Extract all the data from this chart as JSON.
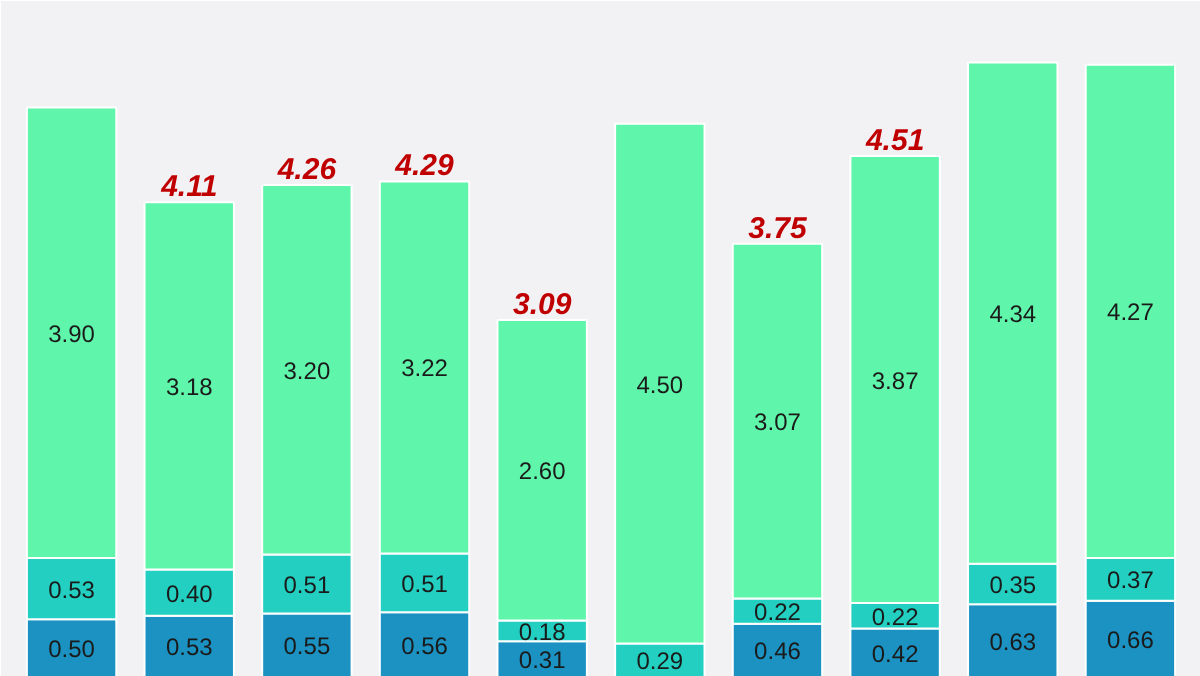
{
  "chart_data": {
    "type": "bar",
    "stacked": true,
    "categories": [
      null,
      null,
      null,
      null,
      null,
      null,
      null,
      null,
      null,
      null
    ],
    "series": [
      {
        "color": "#1b92c2",
        "values": [
          0.5,
          0.53,
          0.55,
          0.56,
          0.31,
          null,
          0.46,
          0.42,
          0.63,
          0.66
        ],
        "value_labels": [
          "0.50",
          "0.53",
          "0.55",
          "0.56",
          "0.31",
          null,
          "0.46",
          "0.42",
          "0.63",
          "0.66"
        ]
      },
      {
        "color": "#22cfc0",
        "values": [
          0.53,
          0.4,
          0.51,
          0.51,
          0.18,
          0.29,
          0.22,
          0.22,
          0.35,
          0.37
        ],
        "value_labels": [
          "0.53",
          "0.40",
          "0.51",
          "0.51",
          "0.18",
          "0.29",
          "0.22",
          "0.22",
          "0.35",
          "0.37"
        ]
      },
      {
        "color": "#5ff5aa",
        "values": [
          3.9,
          3.18,
          3.2,
          3.22,
          2.6,
          4.5,
          3.07,
          3.87,
          4.34,
          4.27
        ],
        "value_labels": [
          "3.90",
          "3.18",
          "3.20",
          "3.22",
          "2.60",
          "4.50",
          "3.07",
          "3.87",
          "4.34",
          "4.27"
        ]
      }
    ],
    "totals": [
      null,
      "4.11",
      "4.26",
      "4.29",
      "3.09",
      null,
      "3.75",
      "4.51",
      null,
      null
    ]
  }
}
